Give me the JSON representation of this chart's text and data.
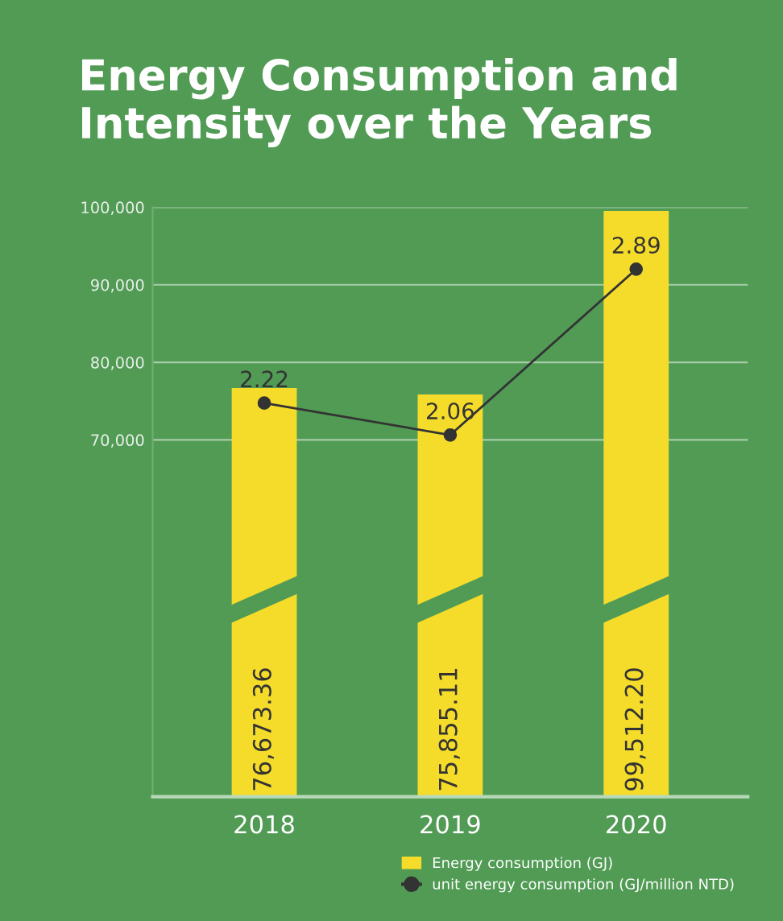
{
  "chart_data": {
    "type": "bar",
    "title": "Energy Consumption and Intensity over the Years",
    "categories": [
      "2018",
      "2019",
      "2020"
    ],
    "series": [
      {
        "name": "Energy consumption (GJ)",
        "color": "#f5dc2a",
        "values": [
          76673.36,
          75855.11,
          99512.2
        ],
        "value_labels": [
          "76,673.36",
          "75,855.11",
          "99,512.20"
        ]
      },
      {
        "name": "unit energy consumption (GJ/million NTD)",
        "type": "line",
        "axis": "y2",
        "color": "#333333",
        "marker": "circle",
        "values": [
          2.22,
          2.06,
          2.89
        ],
        "value_labels": [
          "2.22",
          "2.06",
          "2.89"
        ]
      }
    ],
    "ylim": [
      24000,
      100000
    ],
    "yticks": [
      {
        "value": 70000,
        "label": "70,000"
      },
      {
        "value": 80000,
        "label": "80,000"
      },
      {
        "value": 90000,
        "label": "90,000"
      },
      {
        "value": 100000,
        "label": "100,000"
      }
    ],
    "y2lim": [
      0.25,
      3.2
    ],
    "grid": "y",
    "legend": "bottom right"
  }
}
